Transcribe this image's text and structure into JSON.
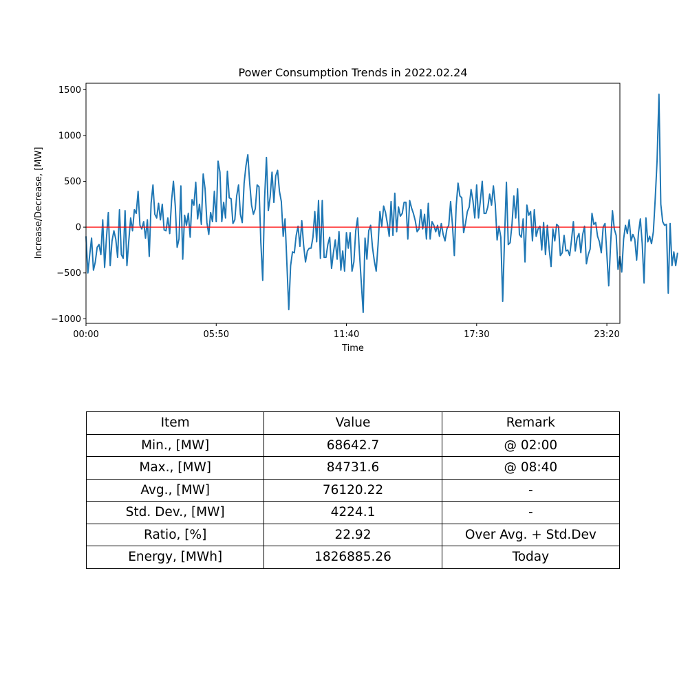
{
  "chart_data": {
    "type": "line",
    "title": "Power Consumption Trends in 2022.02.24",
    "xlabel": "Time",
    "ylabel": "Increase/Decrease, [MW]",
    "xlim": [
      0,
      287
    ],
    "ylim": [
      -1050,
      1570
    ],
    "x_step_minutes": 5,
    "x_ticks": [
      {
        "pos": 0,
        "label": "00:00"
      },
      {
        "pos": 70,
        "label": "05:50"
      },
      {
        "pos": 140,
        "label": "11:40"
      },
      {
        "pos": 210,
        "label": "17:30"
      },
      {
        "pos": 280,
        "label": "23:20"
      }
    ],
    "y_ticks": [
      {
        "value": -1000,
        "label": "−1000"
      },
      {
        "value": -500,
        "label": "−500"
      },
      {
        "value": 0,
        "label": "0"
      },
      {
        "value": 500,
        "label": "500"
      },
      {
        "value": 1000,
        "label": "1000"
      },
      {
        "value": 1500,
        "label": "1500"
      }
    ],
    "reference_line": {
      "value": 0,
      "color": "#ff0000"
    },
    "series": [
      {
        "name": "Increase/Decrease",
        "color": "#1f77b4",
        "values": [
          -100,
          -500,
          -300,
          -120,
          -470,
          -380,
          -220,
          -190,
          -300,
          80,
          -440,
          -120,
          160,
          -420,
          -150,
          -40,
          -130,
          -330,
          190,
          -300,
          -340,
          180,
          -420,
          -150,
          100,
          -40,
          190,
          150,
          390,
          20,
          -20,
          60,
          -120,
          80,
          -320,
          260,
          460,
          140,
          100,
          260,
          80,
          250,
          -30,
          -40,
          100,
          -70,
          290,
          500,
          230,
          -220,
          -130,
          450,
          -350,
          130,
          20,
          150,
          -110,
          300,
          240,
          490,
          90,
          250,
          30,
          580,
          420,
          50,
          -80,
          160,
          60,
          390,
          60,
          720,
          600,
          60,
          270,
          100,
          610,
          320,
          310,
          40,
          80,
          340,
          460,
          140,
          50,
          480,
          670,
          790,
          480,
          240,
          140,
          200,
          460,
          440,
          -170,
          -580,
          310,
          760,
          180,
          330,
          600,
          270,
          560,
          620,
          390,
          280,
          -100,
          90,
          -400,
          -900,
          -420,
          -270,
          -280,
          -90,
          10,
          -210,
          70,
          -200,
          -380,
          -260,
          -230,
          -230,
          -110,
          170,
          -160,
          290,
          -340,
          290,
          -330,
          -330,
          -190,
          -110,
          -450,
          -280,
          -140,
          -350,
          -50,
          -470,
          -260,
          -480,
          -60,
          -230,
          -60,
          -480,
          -380,
          -40,
          100,
          -280,
          -610,
          -930,
          -120,
          -350,
          -40,
          20,
          -220,
          -370,
          -480,
          -190,
          170,
          10,
          230,
          160,
          40,
          -100,
          280,
          -90,
          370,
          -50,
          220,
          120,
          150,
          270,
          270,
          -130,
          290,
          210,
          150,
          70,
          -50,
          -20,
          190,
          -20,
          140,
          -130,
          260,
          -130,
          60,
          20,
          -50,
          20,
          -100,
          40,
          -80,
          -150,
          -20,
          20,
          280,
          20,
          -310,
          230,
          480,
          340,
          320,
          -60,
          40,
          170,
          220,
          410,
          290,
          100,
          460,
          100,
          290,
          500,
          150,
          150,
          220,
          360,
          240,
          450,
          250,
          -140,
          10,
          -110,
          -810,
          -110,
          490,
          -190,
          -170,
          30,
          340,
          100,
          420,
          -80,
          -110,
          90,
          -380,
          240,
          130,
          170,
          -150,
          190,
          -100,
          -20,
          10,
          -250,
          50,
          -300,
          20,
          -240,
          -430,
          -20,
          -150,
          30,
          10,
          -310,
          -280,
          -90,
          -260,
          -250,
          -310,
          -140,
          60,
          -260,
          -120,
          -70,
          -280,
          -80,
          10,
          -400,
          -300,
          -240,
          150,
          30,
          50,
          -100,
          -160,
          -280,
          0,
          40,
          -300,
          -640,
          -190,
          180,
          -20,
          -90,
          -460,
          -320,
          -490,
          -130,
          20,
          -70,
          80,
          -150,
          -80,
          -130,
          -360,
          -60,
          90,
          -180,
          -610,
          100,
          -160,
          -100,
          -180,
          -50,
          310,
          730,
          1450,
          250,
          60,
          20,
          30,
          -720,
          40,
          -420,
          -270,
          -420,
          -280
        ]
      }
    ]
  },
  "table": {
    "headers": [
      "Item",
      "Value",
      "Remark"
    ],
    "rows": [
      [
        "Min., [MW]",
        "68642.7",
        "@ 02:00"
      ],
      [
        "Max., [MW]",
        "84731.6",
        "@ 08:40"
      ],
      [
        "Avg., [MW]",
        "76120.22",
        "-"
      ],
      [
        "Std. Dev., [MW]",
        "4224.1",
        "-"
      ],
      [
        "Ratio, [%]",
        "22.92",
        "Over Avg. + Std.Dev"
      ],
      [
        "Energy, [MWh]",
        "1826885.26",
        "Today"
      ]
    ]
  }
}
